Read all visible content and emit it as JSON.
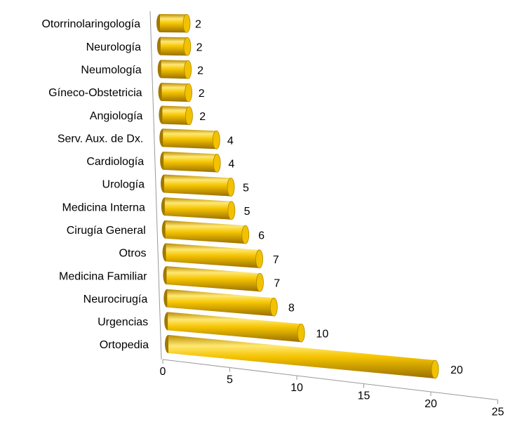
{
  "chart_data": {
    "type": "bar3d",
    "orientation": "horizontal",
    "categories": [
      "Otorrinolaringología",
      "Neurología",
      "Neumología",
      "Gíneco-Obstetricia",
      "Angiología",
      "Serv. Aux. de Dx.",
      "Cardiología",
      "Urología",
      "Medicina Interna",
      "Cirugía General",
      "Otros",
      "Medicina Familiar",
      "Neurocirugía",
      "Urgencias",
      "Ortopedia"
    ],
    "values": [
      2,
      2,
      2,
      2,
      2,
      4,
      4,
      5,
      5,
      6,
      7,
      7,
      8,
      10,
      20
    ],
    "color": "#f2c200",
    "xlim": [
      0,
      25
    ],
    "xticks": [
      0,
      5,
      10,
      15,
      20,
      25
    ],
    "grid": false
  }
}
